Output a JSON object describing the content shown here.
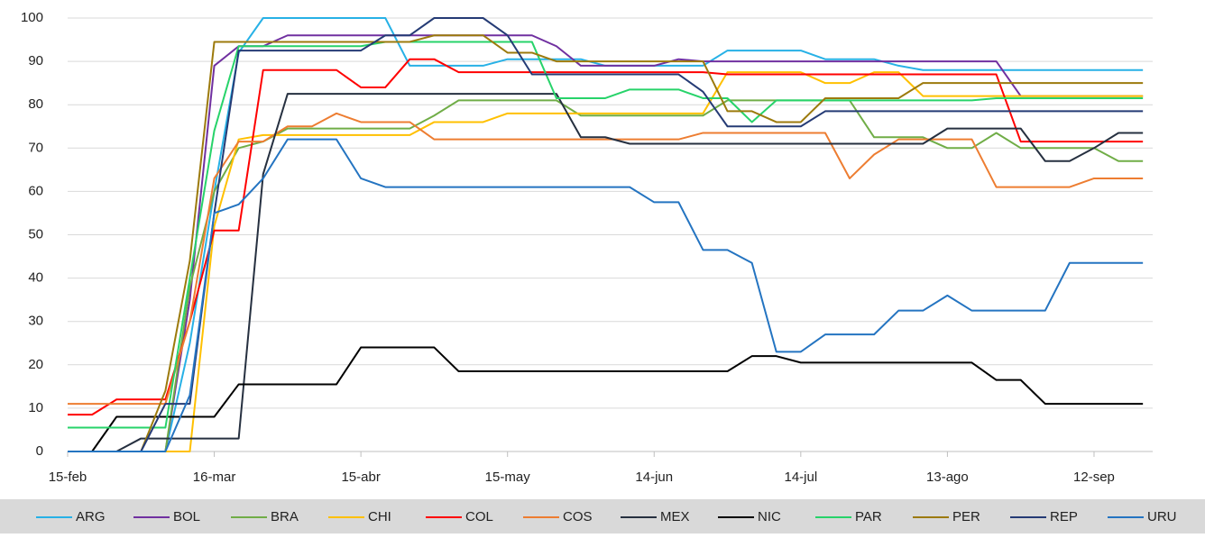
{
  "chart_data": {
    "type": "line",
    "x": [
      0,
      5,
      10,
      15,
      20,
      25,
      30,
      35,
      40,
      45,
      50,
      55,
      60,
      65,
      70,
      75,
      80,
      85,
      90,
      95,
      100,
      105,
      110,
      115,
      120,
      125,
      130,
      135,
      140,
      145,
      150,
      155,
      160,
      165,
      170,
      175,
      180,
      185,
      190,
      195,
      200,
      205,
      210,
      215,
      220
    ],
    "xlim": [
      0,
      222
    ],
    "xticks": [
      {
        "value": 0,
        "label": "15-feb"
      },
      {
        "value": 30,
        "label": "16-mar"
      },
      {
        "value": 60,
        "label": "15-abr"
      },
      {
        "value": 90,
        "label": "15-may"
      },
      {
        "value": 120,
        "label": "14-jun"
      },
      {
        "value": 150,
        "label": "14-jul"
      },
      {
        "value": 180,
        "label": "13-ago"
      },
      {
        "value": 210,
        "label": "12-sep"
      }
    ],
    "ylim": [
      0,
      100
    ],
    "yticks": [
      0,
      10,
      20,
      30,
      40,
      50,
      60,
      70,
      80,
      90,
      100
    ],
    "grid": true,
    "legend": "bottom",
    "series": [
      {
        "name": "ARG",
        "color": "#27b1e6",
        "values": [
          0,
          0,
          0,
          0,
          0,
          25,
          60,
          92,
          100,
          100,
          100,
          100,
          100,
          100,
          89,
          89,
          89,
          89,
          90.5,
          90.5,
          90.5,
          90.5,
          89,
          89,
          89,
          89,
          89,
          92.5,
          92.5,
          92.5,
          92.5,
          90.5,
          90.5,
          90.5,
          89,
          88,
          88,
          88,
          88,
          88,
          88,
          88,
          88,
          88,
          88
        ]
      },
      {
        "name": "BOL",
        "color": "#7030a0",
        "values": [
          0,
          0,
          0,
          0,
          0,
          35,
          89,
          93.5,
          93.5,
          96,
          96,
          96,
          96,
          96,
          96,
          96,
          96,
          96,
          96,
          96,
          93.5,
          89,
          89,
          89,
          89,
          90.5,
          90,
          90,
          90,
          90,
          90,
          90,
          90,
          90,
          90,
          90,
          90,
          90,
          90,
          82,
          82,
          82,
          82,
          82,
          82
        ]
      },
      {
        "name": "BRA",
        "color": "#70ad47",
        "values": [
          0,
          0,
          0,
          0,
          0,
          38,
          60,
          70,
          71.5,
          74.5,
          74.5,
          74.5,
          74.5,
          74.5,
          74.5,
          77.5,
          81,
          81,
          81,
          81,
          81,
          77.5,
          77.5,
          77.5,
          77.5,
          77.5,
          77.5,
          81,
          81,
          81,
          81,
          81,
          81,
          72.5,
          72.5,
          72.5,
          70,
          70,
          73.5,
          70,
          70,
          70,
          70,
          67,
          67
        ]
      },
      {
        "name": "CHI",
        "color": "#ffc000",
        "values": [
          0,
          0,
          0,
          0,
          0,
          0,
          52,
          72,
          73,
          73,
          73,
          73,
          73,
          73,
          73,
          76,
          76,
          76,
          78,
          78,
          78,
          78,
          78,
          78,
          78,
          78,
          78,
          87.5,
          87.5,
          87.5,
          87.5,
          85,
          85,
          87.5,
          87.5,
          82,
          82,
          82,
          82,
          82,
          82,
          82,
          82,
          82,
          82
        ]
      },
      {
        "name": "COL",
        "color": "#ff0000",
        "values": [
          8.5,
          8.5,
          12,
          12,
          12,
          30,
          51,
          51,
          88,
          88,
          88,
          88,
          84,
          84,
          90.5,
          90.5,
          87.5,
          87.5,
          87.5,
          87.5,
          87.5,
          87.5,
          87.5,
          87.5,
          87.5,
          87.5,
          87.5,
          87,
          87,
          87,
          87,
          87,
          87,
          87,
          87,
          87,
          87,
          87,
          87,
          71.5,
          71.5,
          71.5,
          71.5,
          71.5,
          71.5
        ]
      },
      {
        "name": "COS",
        "color": "#ed7d31",
        "values": [
          11,
          11,
          11,
          11,
          11,
          30,
          63,
          71.5,
          71.5,
          75,
          75,
          78,
          76,
          76,
          76,
          72,
          72,
          72,
          72,
          72,
          72,
          72,
          72,
          72,
          72,
          72,
          73.5,
          73.5,
          73.5,
          73.5,
          73.5,
          73.5,
          63,
          68.5,
          72,
          72,
          72,
          72,
          61,
          61,
          61,
          61,
          63,
          63,
          63
        ]
      },
      {
        "name": "MEX",
        "color": "#263040",
        "values": [
          0,
          0,
          0,
          3,
          3,
          3,
          3,
          3,
          64,
          82.5,
          82.5,
          82.5,
          82.5,
          82.5,
          82.5,
          82.5,
          82.5,
          82.5,
          82.5,
          82.5,
          82.5,
          72.5,
          72.5,
          71,
          71,
          71,
          71,
          71,
          71,
          71,
          71,
          71,
          71,
          71,
          71,
          71,
          74.5,
          74.5,
          74.5,
          74.5,
          67,
          67,
          70,
          73.5,
          73.5
        ]
      },
      {
        "name": "NIC",
        "color": "#000000",
        "values": [
          0,
          0,
          8,
          8,
          8,
          8,
          8,
          15.5,
          15.5,
          15.5,
          15.5,
          15.5,
          24,
          24,
          24,
          24,
          18.5,
          18.5,
          18.5,
          18.5,
          18.5,
          18.5,
          18.5,
          18.5,
          18.5,
          18.5,
          18.5,
          18.5,
          22,
          22,
          20.5,
          20.5,
          20.5,
          20.5,
          20.5,
          20.5,
          20.5,
          20.5,
          16.5,
          16.5,
          11,
          11,
          11,
          11,
          11
        ]
      },
      {
        "name": "PAR",
        "color": "#27d36a",
        "values": [
          5.5,
          5.5,
          5.5,
          5.5,
          5.5,
          40,
          74,
          93.5,
          93.5,
          93.5,
          93.5,
          93.5,
          93.5,
          94.5,
          94.5,
          94.5,
          94.5,
          94.5,
          94.5,
          94.5,
          81.5,
          81.5,
          81.5,
          83.5,
          83.5,
          83.5,
          81.5,
          81.5,
          76,
          81,
          81,
          81,
          81,
          81,
          81,
          81,
          81,
          81,
          81.5,
          81.5,
          81.5,
          81.5,
          81.5,
          81.5,
          81.5
        ]
      },
      {
        "name": "PER",
        "color": "#9c7a0c",
        "values": [
          0,
          0,
          0,
          0,
          14,
          44,
          94.5,
          94.5,
          94.5,
          94.5,
          94.5,
          94.5,
          94.5,
          94.5,
          94.5,
          96,
          96,
          96,
          92,
          92,
          90,
          90,
          90,
          90,
          90,
          90,
          90,
          78.5,
          78.5,
          76,
          76,
          81.5,
          81.5,
          81.5,
          81.5,
          85,
          85,
          85,
          85,
          85,
          85,
          85,
          85,
          85,
          85
        ]
      },
      {
        "name": "REP",
        "color": "#253b75",
        "values": [
          0,
          0,
          0,
          0,
          11,
          11,
          55,
          92.5,
          92.5,
          92.5,
          92.5,
          92.5,
          92.5,
          96,
          96,
          100,
          100,
          100,
          96,
          87,
          87,
          87,
          87,
          87,
          87,
          87,
          83,
          75,
          75,
          75,
          75,
          78.5,
          78.5,
          78.5,
          78.5,
          78.5,
          78.5,
          78.5,
          78.5,
          78.5,
          78.5,
          78.5,
          78.5,
          78.5,
          78.5
        ]
      },
      {
        "name": "URU",
        "color": "#2474c1",
        "values": [
          0,
          0,
          0,
          0,
          0,
          13,
          55,
          57,
          63,
          72,
          72,
          72,
          63,
          61,
          61,
          61,
          61,
          61,
          61,
          61,
          61,
          61,
          61,
          61,
          57.5,
          57.5,
          46.5,
          46.5,
          43.5,
          23,
          23,
          27,
          27,
          27,
          32.5,
          32.5,
          36,
          32.5,
          32.5,
          32.5,
          32.5,
          43.5,
          43.5,
          43.5,
          43.5
        ]
      }
    ]
  }
}
